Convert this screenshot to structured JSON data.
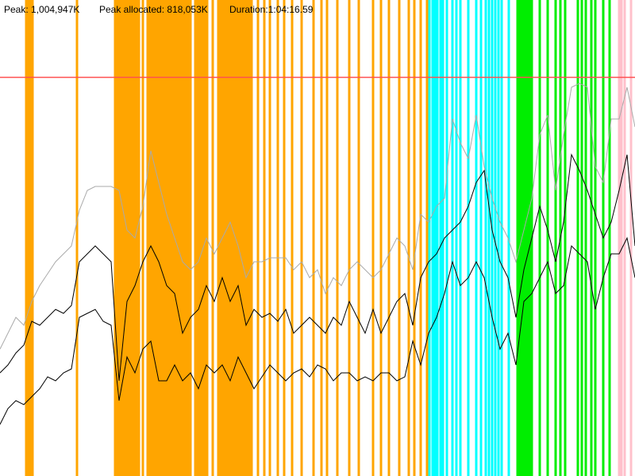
{
  "chart_data": {
    "type": "line",
    "x": [
      0,
      48,
      96,
      144,
      192,
      240,
      288,
      336,
      384,
      432,
      480,
      528,
      576,
      624,
      672,
      720,
      768,
      816,
      864,
      912,
      960,
      1008,
      1056,
      1104,
      1152,
      1200,
      1248,
      1296,
      1344,
      1392,
      1440,
      1488,
      1536,
      1584,
      1632,
      1680,
      1728,
      1776,
      1824,
      1872,
      1920,
      1968,
      2016,
      2064,
      2112,
      2160,
      2208,
      2256,
      2304,
      2352,
      2400,
      2448,
      2496,
      2544,
      2592,
      2640,
      2688,
      2736,
      2784,
      2832,
      2880,
      2928,
      2976,
      3024,
      3072,
      3120,
      3168,
      3216,
      3264,
      3312,
      3360,
      3408,
      3456,
      3504,
      3552,
      3600,
      3648,
      3696,
      3744,
      3792,
      3840
    ],
    "xlim": [
      0,
      3840
    ],
    "ylim": [
      0,
      1200000
    ],
    "series": [
      {
        "color": "#aaaaaa",
        "values": [
          320000,
          360000,
          400000,
          380000,
          440000,
          480000,
          510000,
          540000,
          560000,
          580000,
          670000,
          720000,
          730000,
          730000,
          730000,
          720000,
          620000,
          600000,
          680000,
          820000,
          740000,
          660000,
          600000,
          540000,
          520000,
          540000,
          600000,
          560000,
          600000,
          640000,
          580000,
          500000,
          540000,
          540000,
          550000,
          550000,
          550000,
          520000,
          540000,
          500000,
          520000,
          460000,
          500000,
          480000,
          520000,
          540000,
          520000,
          500000,
          520000,
          560000,
          600000,
          580000,
          520000,
          660000,
          640000,
          680000,
          700000,
          900000,
          840000,
          800000,
          910000,
          780000,
          700000,
          640000,
          600000,
          540000,
          620000,
          700000,
          860000,
          910000,
          720000,
          860000,
          980000,
          990000,
          980000,
          780000,
          740000,
          900000,
          900000,
          980000,
          880000
        ]
      },
      {
        "color": "#000000",
        "values": [
          260000,
          280000,
          310000,
          330000,
          390000,
          380000,
          400000,
          420000,
          410000,
          430000,
          540000,
          560000,
          580000,
          560000,
          540000,
          240000,
          440000,
          480000,
          540000,
          580000,
          540000,
          480000,
          460000,
          360000,
          400000,
          420000,
          480000,
          440000,
          500000,
          440000,
          480000,
          380000,
          420000,
          400000,
          410000,
          390000,
          420000,
          360000,
          380000,
          400000,
          380000,
          360000,
          400000,
          380000,
          440000,
          400000,
          360000,
          420000,
          360000,
          400000,
          440000,
          460000,
          380000,
          500000,
          540000,
          560000,
          600000,
          620000,
          640000,
          680000,
          740000,
          770000,
          620000,
          540000,
          500000,
          400000,
          520000,
          600000,
          680000,
          620000,
          540000,
          640000,
          810000,
          770000,
          720000,
          660000,
          600000,
          640000,
          720000,
          810000,
          580000
        ]
      },
      {
        "color": "#000000",
        "values": [
          130000,
          170000,
          190000,
          180000,
          200000,
          220000,
          250000,
          240000,
          260000,
          270000,
          400000,
          410000,
          420000,
          390000,
          380000,
          190000,
          300000,
          260000,
          320000,
          340000,
          240000,
          240000,
          280000,
          240000,
          260000,
          220000,
          280000,
          260000,
          280000,
          240000,
          300000,
          260000,
          220000,
          250000,
          280000,
          260000,
          240000,
          260000,
          270000,
          250000,
          280000,
          270000,
          240000,
          260000,
          260000,
          240000,
          250000,
          240000,
          260000,
          260000,
          240000,
          250000,
          340000,
          280000,
          360000,
          400000,
          460000,
          540000,
          480000,
          500000,
          540000,
          500000,
          400000,
          320000,
          360000,
          280000,
          440000,
          460000,
          500000,
          540000,
          460000,
          480000,
          580000,
          560000,
          540000,
          420000,
          500000,
          560000,
          560000,
          600000,
          500000
        ]
      }
    ],
    "events": [
      {
        "color": "#ffa500",
        "x": [
          158.4,
          168,
          177.6,
          187.2,
          196.8,
          465.6,
          696,
          710.4,
          724.8,
          739.2,
          753.6,
          768,
          782.4,
          796.8,
          811.2,
          825.6,
          840,
          864,
          892.8,
          907.2,
          921.6,
          936,
          950.4,
          964.8,
          979.2,
          993.6,
          1008,
          1022.4,
          1036.8,
          1051.2,
          1065.6,
          1080,
          1094.4,
          1108.8,
          1123.2,
          1137.6,
          1152,
          1180.8,
          1195.2,
          1209.6,
          1224,
          1238.4,
          1252.8,
          1286.4,
          1320,
          1334.4,
          1348.8,
          1363.2,
          1377.6,
          1392,
          1406.4,
          1420.8,
          1435.2,
          1449.6,
          1464,
          1478.4,
          1492.8,
          1507.2,
          1521.6,
          1560,
          1598.4,
          1632,
          1680,
          1718.4,
          1766.4,
          1824,
          1896,
          1944,
          1977.6,
          2040,
          2112,
          2169.6,
          2256,
          2304,
          2352,
          2414.4,
          2472,
          2505.6,
          2544,
          2582.4
        ]
      },
      {
        "color": "#00ffff",
        "x": [
          2596.8,
          2616,
          2630.4,
          2644.8,
          2664,
          2678.4,
          2702.4,
          2736,
          2760,
          2784,
          2832,
          2880,
          2908.8,
          2937.6,
          2956.8,
          2976,
          2995.2,
          3014.4,
          3033.6,
          3076.8
        ]
      },
      {
        "color": "#00ee00",
        "x": [
          3129.6,
          3144,
          3158.4,
          3172.8,
          3187.2,
          3201.6,
          3216,
          3264,
          3312,
          3360,
          3388.8,
          3417.6,
          3494.4,
          3518.4,
          3542.4,
          3576,
          3600,
          3648,
          3686.4
        ]
      },
      {
        "color": "#ffc0cb",
        "x": [
          3744,
          3758.4,
          3777.6,
          3816
        ]
      }
    ],
    "annotations": [
      {
        "label": "Peak: 1,004,947K",
        "value": 1004947,
        "color": "#ff5050"
      },
      {
        "label": "Peak allocated: 818,053K",
        "value": 818053
      },
      {
        "label": "Duration:1:04:16.59",
        "value": 3856.59
      }
    ]
  }
}
